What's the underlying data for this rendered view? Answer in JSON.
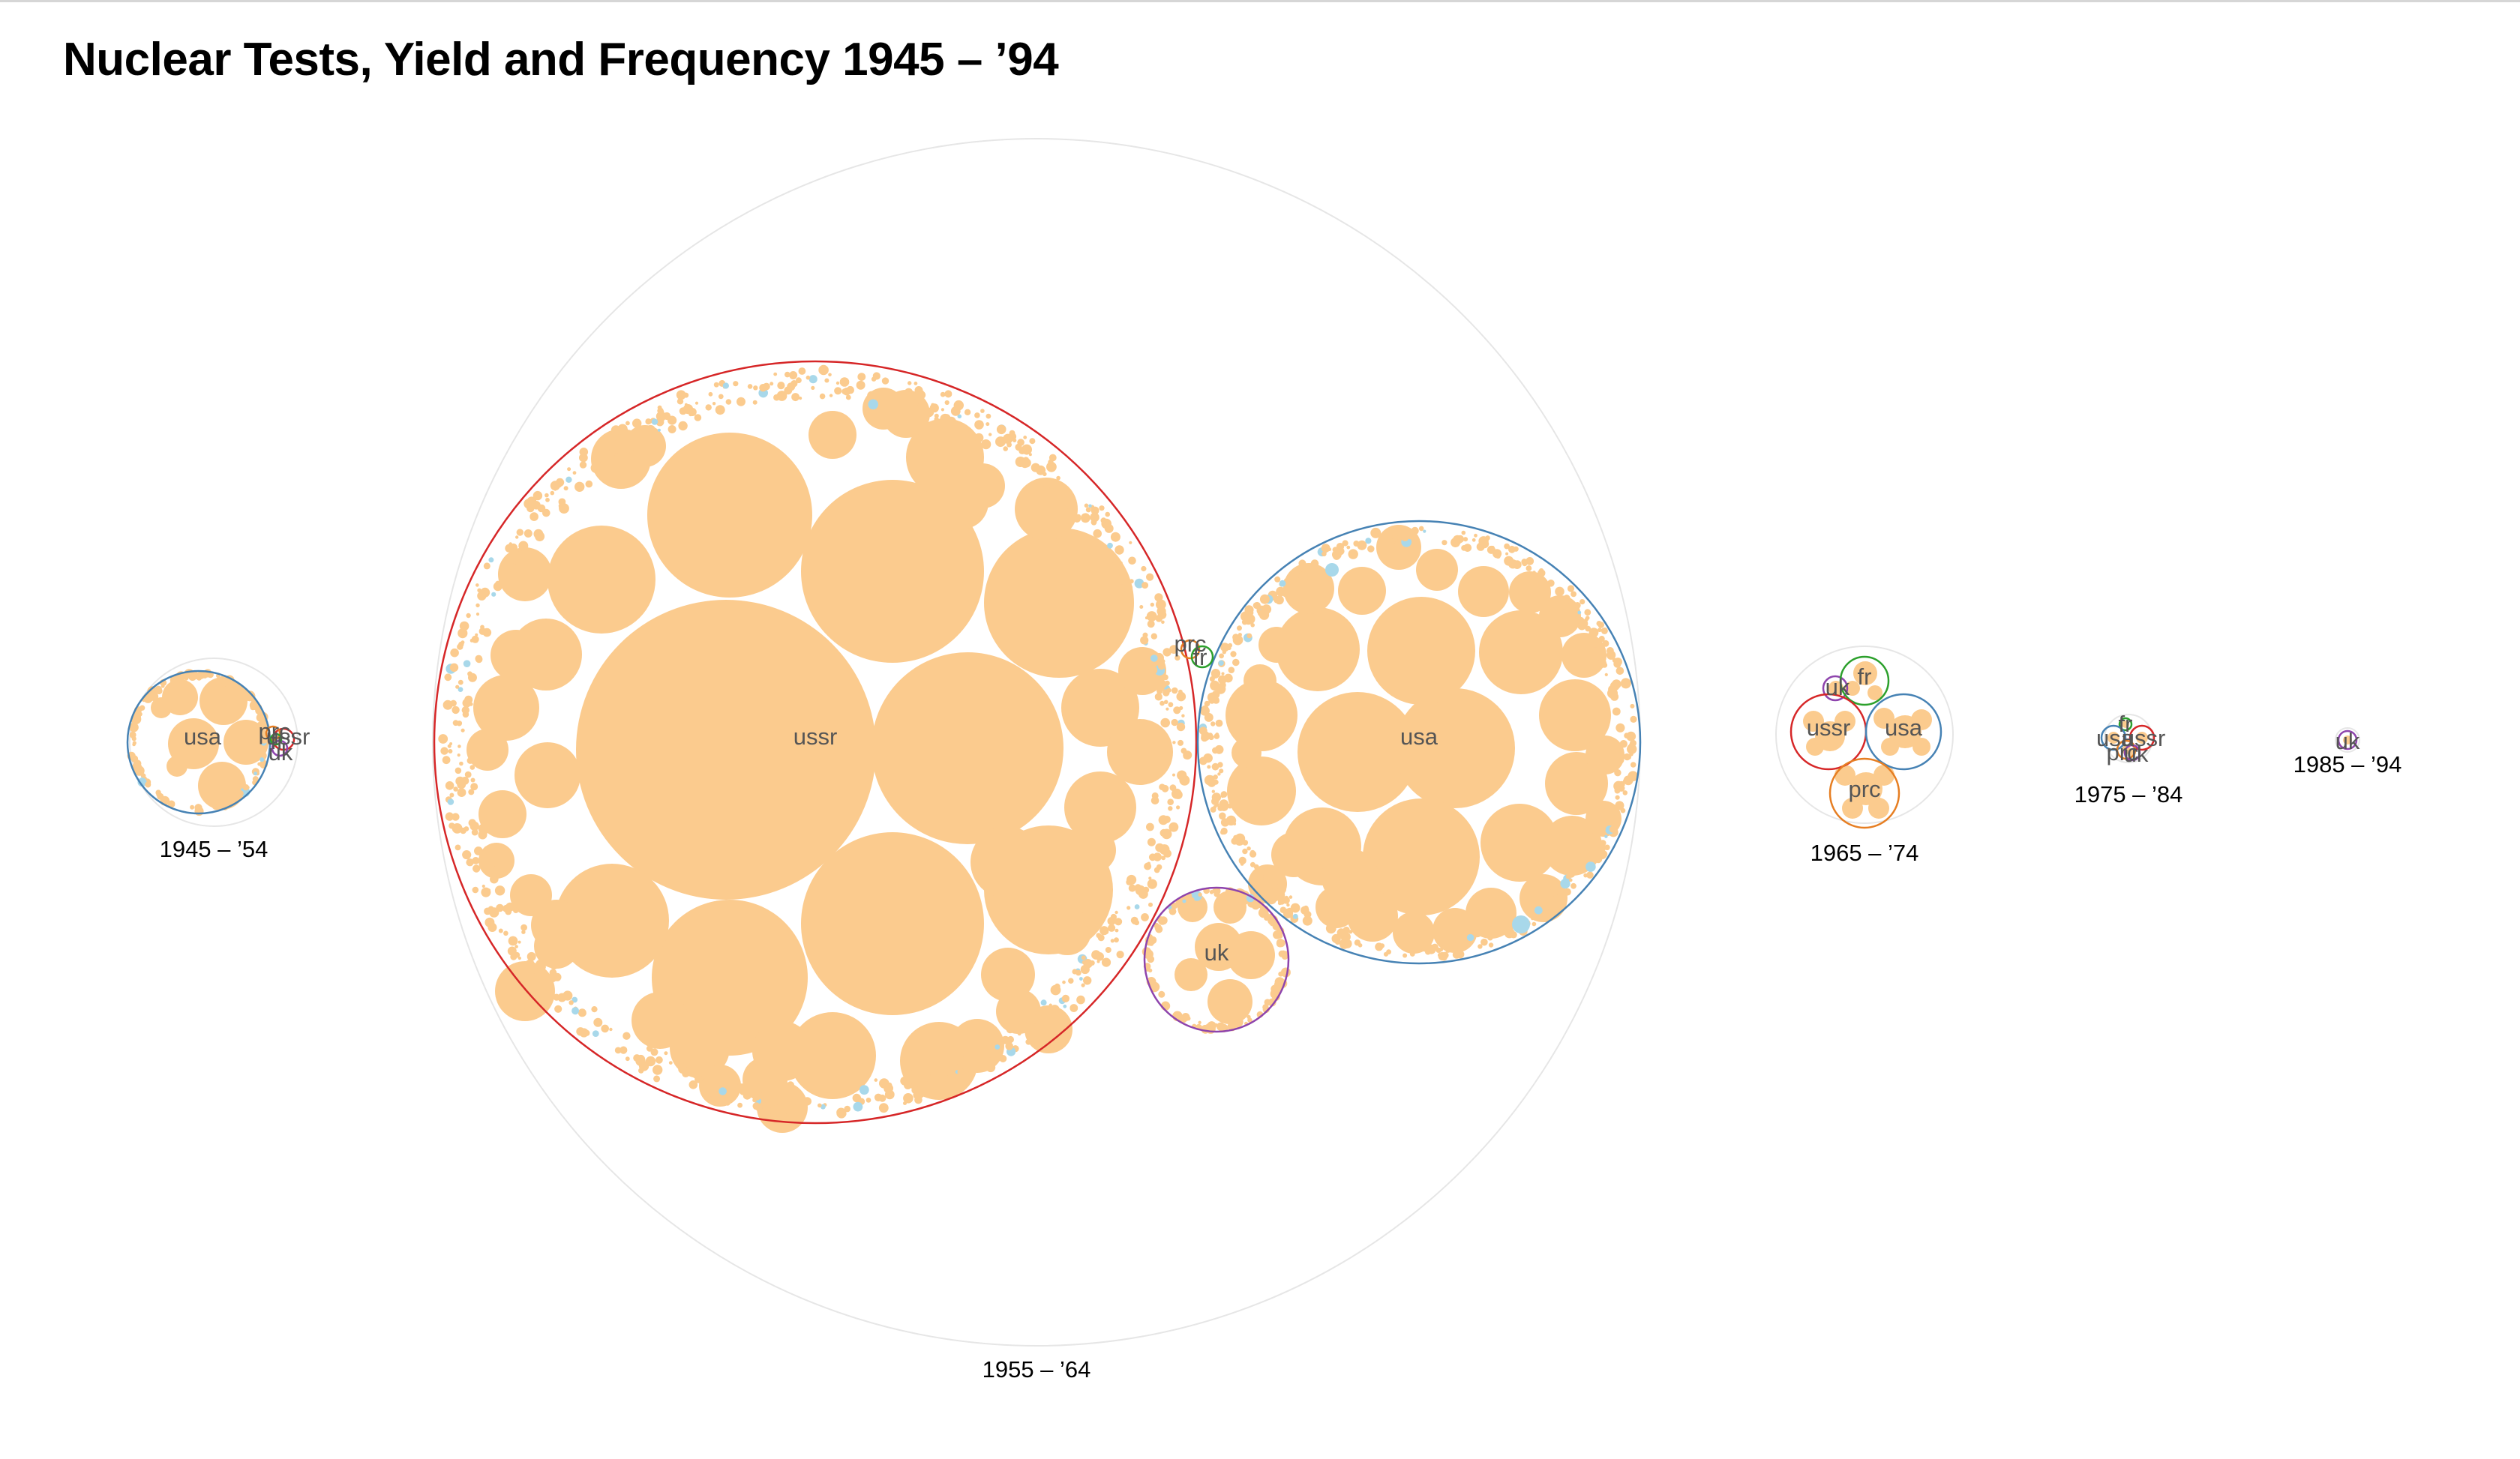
{
  "title": "Nuclear Tests, Yield and Frequency 1945 – ’94",
  "colors": {
    "usa": "#4682b4",
    "ussr": "#d62728",
    "uk": "#8e44ad",
    "fr": "#2ca02c",
    "prc": "#e67e22",
    "bubble": "#fbcb8e",
    "bubble_low": "#a8d8ea",
    "decade_ring": "#e6e6e6"
  },
  "chart_data": {
    "type": "packed-bubble",
    "title": "Nuclear Tests, Yield and Frequency 1945 – ’94",
    "decades": [
      {
        "label": "1945 – ’54",
        "countries": [
          "usa",
          "ussr",
          "uk",
          "prc",
          "fr"
        ]
      },
      {
        "label": "1955 – ’64",
        "countries": [
          "ussr",
          "usa",
          "uk",
          "prc",
          "fr"
        ]
      },
      {
        "label": "1965 – ’74",
        "countries": [
          "uk",
          "fr",
          "ussr",
          "usa",
          "prc"
        ]
      },
      {
        "label": "1975 – ’84",
        "countries": [
          "fr",
          "usa",
          "ussr",
          "prc",
          "uk"
        ]
      },
      {
        "label": "1985 – ’94",
        "countries": [
          "uk"
        ]
      }
    ]
  }
}
